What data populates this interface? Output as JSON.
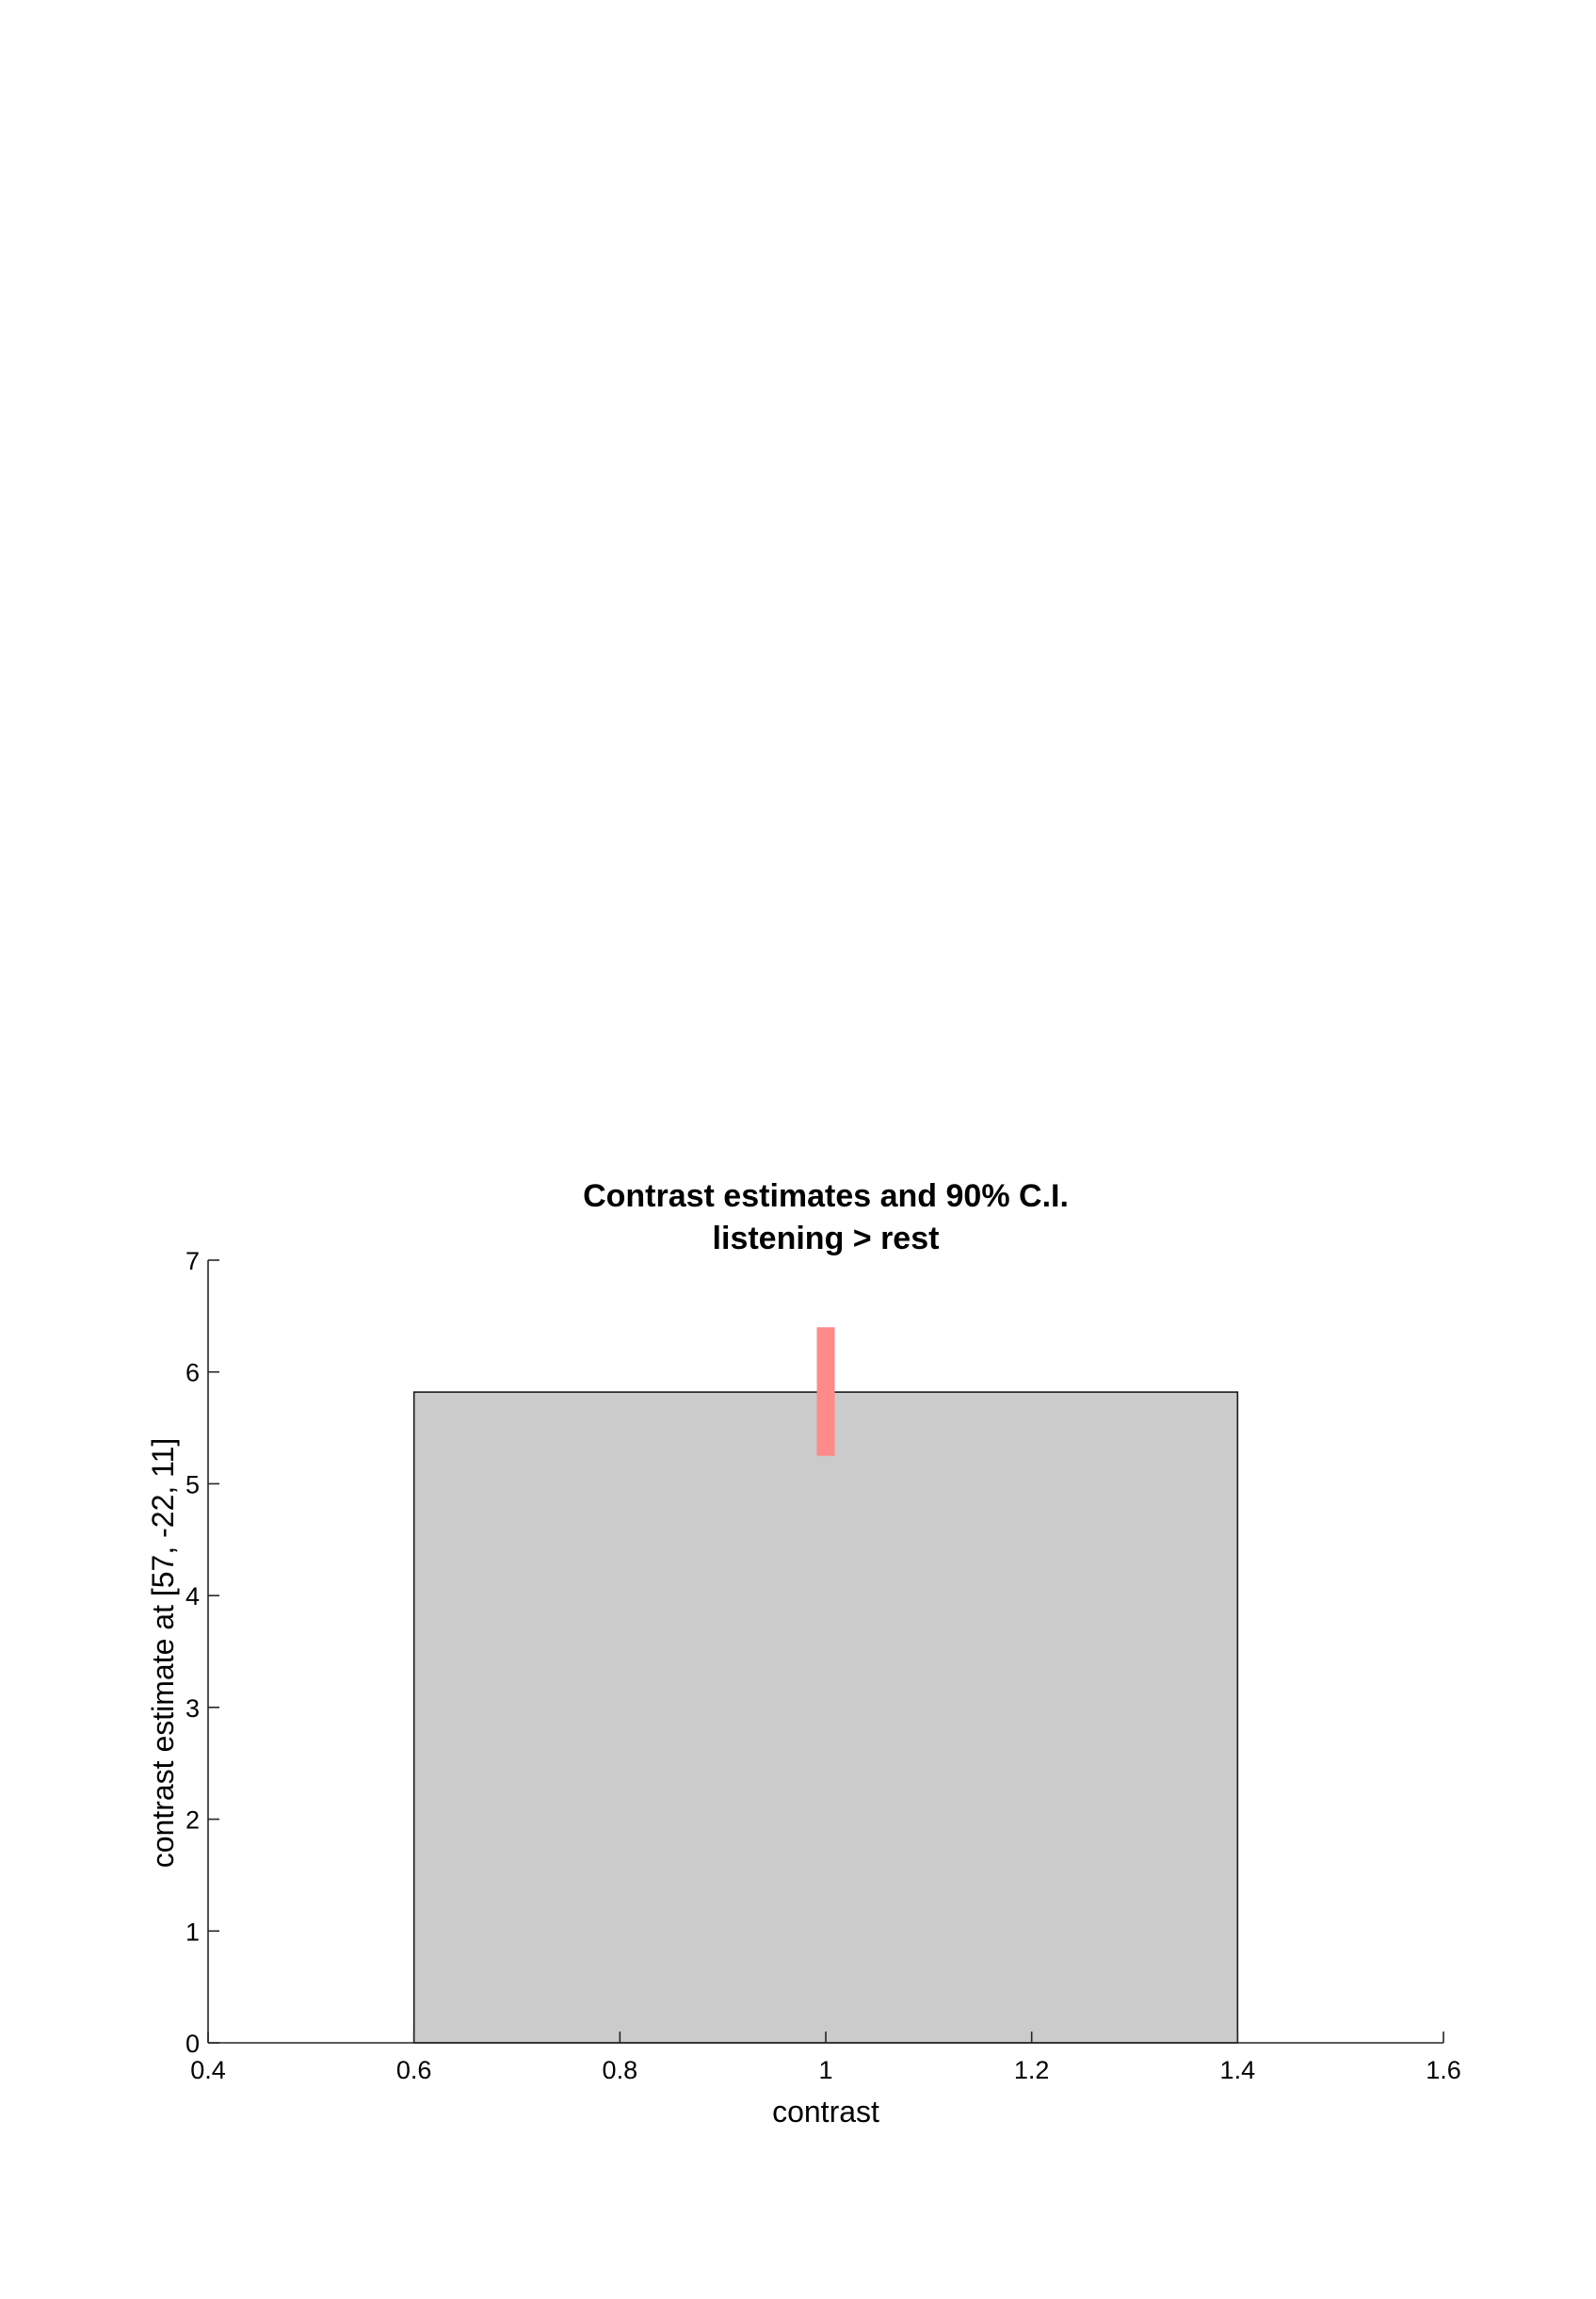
{
  "chart_data": {
    "type": "bar",
    "title": "Contrast estimates and 90% C.I.",
    "subtitle": "listening > rest",
    "xlabel": "contrast",
    "ylabel": "contrast estimate at [57, -22, 11]",
    "xlim": [
      0.4,
      1.6
    ],
    "ylim": [
      0,
      7
    ],
    "x_ticks": [
      0.4,
      0.6,
      0.8,
      1,
      1.2,
      1.4,
      1.6
    ],
    "x_tick_labels": [
      "0.4",
      "0.6",
      "0.8",
      "1",
      "1.2",
      "1.4",
      "1.6"
    ],
    "y_ticks": [
      0,
      1,
      2,
      3,
      4,
      5,
      6,
      7
    ],
    "y_tick_labels": [
      "0",
      "1",
      "2",
      "3",
      "4",
      "5",
      "6",
      "7"
    ],
    "grid": false,
    "bars": [
      {
        "x": 1,
        "x_start": 0.6,
        "x_end": 1.4,
        "value": 5.82
      }
    ],
    "confidence_intervals": [
      {
        "x": 1,
        "lower": 5.25,
        "upper": 6.4
      }
    ],
    "colors": {
      "bar_fill": "#cbcbcb",
      "bar_edge": "#1a1a1a",
      "ci": "#ff8a8a",
      "axis": "#262626"
    }
  }
}
